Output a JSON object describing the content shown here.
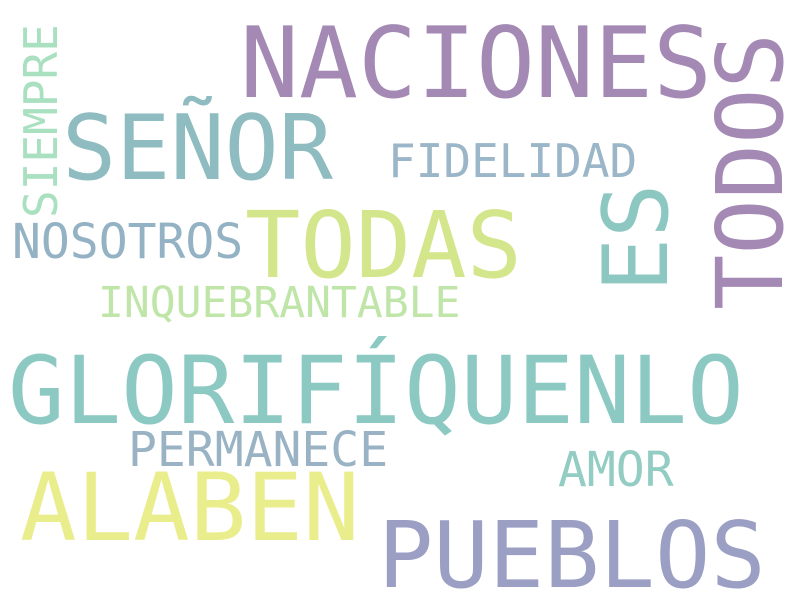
{
  "words": [
    {
      "text": "NACIONES",
      "color": "#a389b4"
    },
    {
      "text": "SEÑOR",
      "color": "#8fbcc0"
    },
    {
      "text": "SIEMPRE",
      "color": "#a9e0c0"
    },
    {
      "text": "FIDELIDAD",
      "color": "#9ab6c8"
    },
    {
      "text": "NOSOTROS",
      "color": "#93b2c4"
    },
    {
      "text": "TODAS",
      "color": "#d4e68c"
    },
    {
      "text": "ES",
      "color": "#8cc7c2"
    },
    {
      "text": "TODOS",
      "color": "#a389b4"
    },
    {
      "text": "INQUEBRANTABLE",
      "color": "#bfe6a8"
    },
    {
      "text": "GLORIFÍQUENLO",
      "color": "#8dc9c3"
    },
    {
      "text": "PERMANECE",
      "color": "#9ab3c4"
    },
    {
      "text": "AMOR",
      "color": "#92ccc3"
    },
    {
      "text": "ALABEN",
      "color": "#eaed8c"
    },
    {
      "text": "PUEBLOS",
      "color": "#9b9fc4"
    }
  ]
}
